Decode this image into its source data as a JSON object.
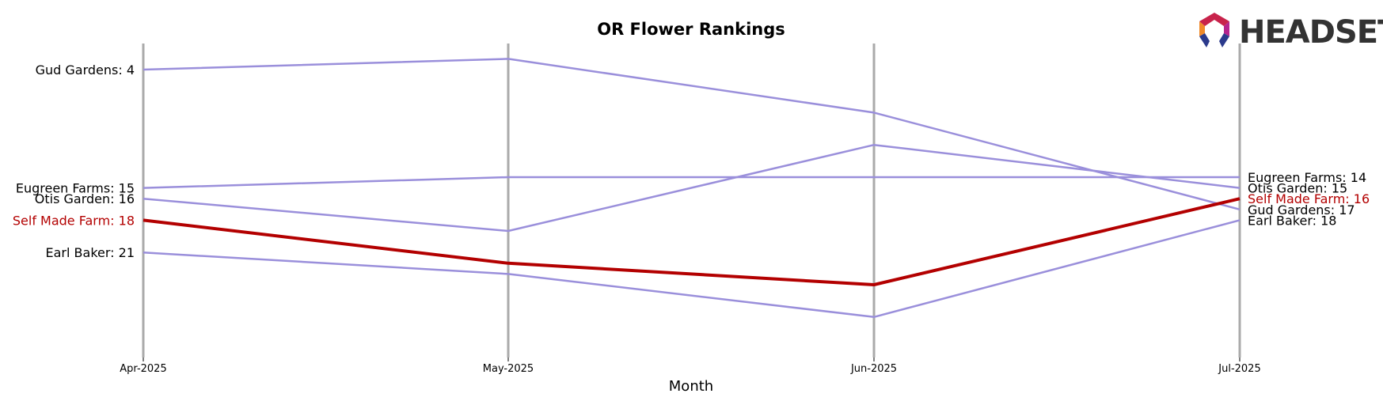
{
  "chart_data": {
    "type": "line",
    "title": "OR Flower Rankings",
    "xlabel": "Month",
    "ylabel": "",
    "x": [
      "Apr-2025",
      "May-2025",
      "Jun-2025",
      "Jul-2025"
    ],
    "y_inverted": true,
    "ylim": [
      2.5,
      29
    ],
    "grid": "vertical lines at each month",
    "highlight_color": "#b30000",
    "line_color": "#9a8fdb",
    "label_color": "#000000",
    "series": [
      {
        "name": "Gud Gardens",
        "values": [
          4,
          3,
          8,
          17
        ],
        "highlight": false
      },
      {
        "name": "Eugreen Farms",
        "values": [
          15,
          14,
          14,
          14
        ],
        "highlight": false
      },
      {
        "name": "Otis Garden",
        "values": [
          16,
          19,
          11,
          15
        ],
        "highlight": false
      },
      {
        "name": "Self Made Farm",
        "values": [
          18,
          22,
          24,
          16
        ],
        "highlight": true
      },
      {
        "name": "Earl Baker",
        "values": [
          21,
          23,
          27,
          18
        ],
        "highlight": false
      }
    ],
    "start_labels": [
      "Gud Gardens: 4",
      "Eugreen Farms: 15",
      "Otis Garden: 16",
      "Self Made Farm: 18",
      "Earl Baker: 21"
    ],
    "end_labels": [
      "Eugreen Farms: 14",
      "Otis Garden: 15",
      "Self Made Farm: 16",
      "Gud Gardens: 17",
      "Earl Baker: 18"
    ]
  },
  "logo": {
    "text": "HEADSET",
    "icon": "headset-hexagon-logo"
  }
}
